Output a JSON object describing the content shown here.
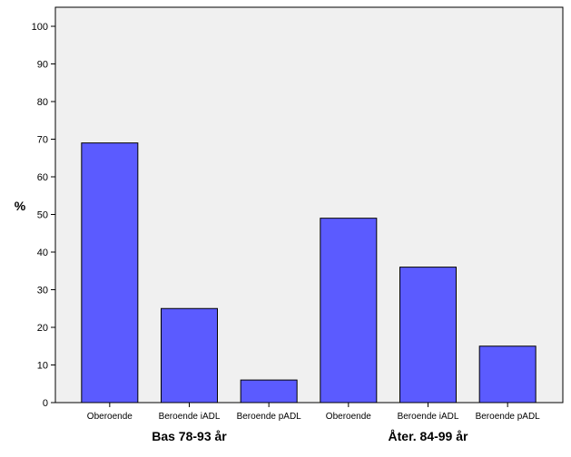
{
  "chart_data": {
    "type": "bar",
    "title": "",
    "xlabel": "",
    "ylabel": "%",
    "ylim": [
      0,
      100
    ],
    "yticks": [
      0,
      10,
      20,
      30,
      40,
      50,
      60,
      70,
      80,
      90,
      100
    ],
    "grid": false,
    "legend": "none",
    "bar_color": "#5b5bff",
    "plot_background": "#f0f0f0",
    "categories": [
      "Oberoende",
      "Beroende iADL",
      "Beroende pADL",
      "Oberoende",
      "Beroende iADL",
      "Beroende pADL"
    ],
    "values": [
      69,
      25,
      6,
      49,
      36,
      15
    ],
    "groups": [
      {
        "label": "Bas 78-93 år",
        "categories": [
          0,
          1,
          2
        ]
      },
      {
        "label": "Åter. 84-99 år",
        "categories": [
          3,
          4,
          5
        ]
      }
    ]
  }
}
